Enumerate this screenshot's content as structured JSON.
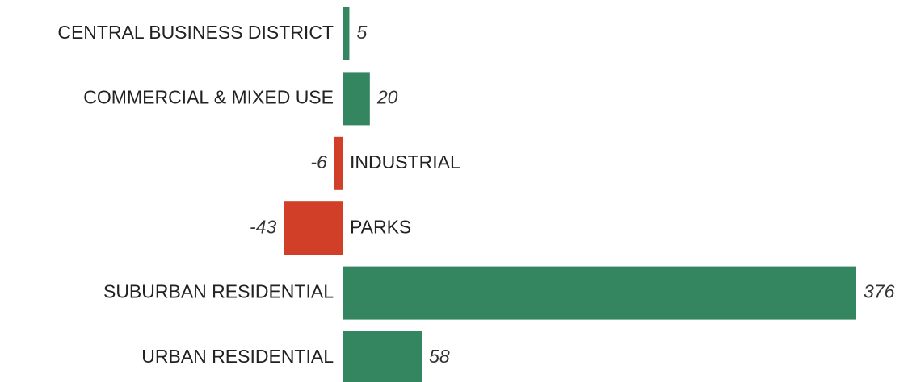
{
  "chart_data": {
    "type": "bar",
    "orientation": "horizontal",
    "categories": [
      "CENTRAL BUSINESS DISTRICT",
      "COMMERCIAL & MIXED USE",
      "INDUSTRIAL",
      "PARKS",
      "SUBURBAN RESIDENTIAL",
      "URBAN RESIDENTIAL"
    ],
    "values": [
      5,
      20,
      -6,
      -43,
      376,
      58
    ],
    "positive_color": "#338660",
    "negative_color": "#d13f28"
  }
}
